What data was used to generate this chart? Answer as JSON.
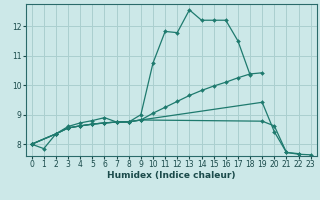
{
  "xlabel": "Humidex (Indice chaleur)",
  "xlim": [
    -0.5,
    23.5
  ],
  "ylim": [
    7.6,
    12.75
  ],
  "yticks": [
    8,
    9,
    10,
    11,
    12
  ],
  "xticks": [
    0,
    1,
    2,
    3,
    4,
    5,
    6,
    7,
    8,
    9,
    10,
    11,
    12,
    13,
    14,
    15,
    16,
    17,
    18,
    19,
    20,
    21,
    22,
    23
  ],
  "bg_color": "#cce8e8",
  "grid_color": "#aacfcf",
  "line_color": "#1e7a6e",
  "lines": [
    {
      "x": [
        0,
        1,
        2,
        3,
        4,
        5,
        6,
        7,
        8,
        9,
        10,
        11,
        12,
        13,
        14,
        15,
        16,
        17,
        18
      ],
      "y": [
        8.0,
        7.85,
        8.35,
        8.6,
        8.72,
        8.8,
        8.9,
        8.75,
        8.75,
        9.0,
        10.75,
        11.82,
        11.78,
        12.55,
        12.2,
        12.2,
        12.2,
        11.5,
        10.35
      ]
    },
    {
      "x": [
        0,
        2,
        3,
        4,
        5,
        6,
        7,
        8,
        9,
        10,
        11,
        12,
        13,
        14,
        15,
        16,
        17,
        18,
        19
      ],
      "y": [
        8.0,
        8.35,
        8.55,
        8.62,
        8.68,
        8.72,
        8.75,
        8.76,
        8.82,
        9.05,
        9.25,
        9.45,
        9.65,
        9.82,
        9.97,
        10.1,
        10.25,
        10.38,
        10.42
      ]
    },
    {
      "x": [
        0,
        2,
        3,
        4,
        5,
        6,
        7,
        8,
        9,
        19,
        20,
        21,
        22
      ],
      "y": [
        8.0,
        8.35,
        8.55,
        8.62,
        8.68,
        8.72,
        8.75,
        8.76,
        8.82,
        9.42,
        8.42,
        7.72,
        7.68
      ]
    },
    {
      "x": [
        0,
        2,
        3,
        4,
        5,
        6,
        7,
        8,
        9,
        19,
        20,
        21,
        22,
        23
      ],
      "y": [
        8.0,
        8.35,
        8.55,
        8.62,
        8.68,
        8.72,
        8.75,
        8.76,
        8.82,
        8.78,
        8.62,
        7.72,
        7.66,
        7.64
      ]
    }
  ]
}
